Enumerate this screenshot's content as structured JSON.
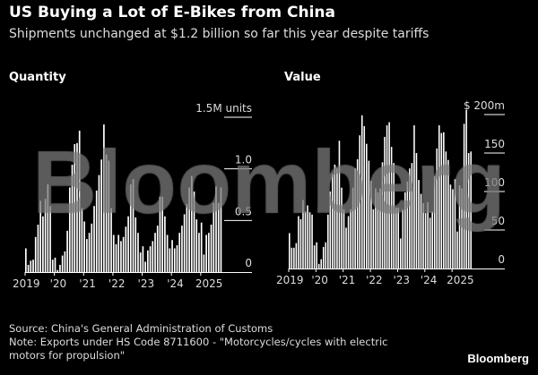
{
  "title": "US Buying a Lot of E-Bikes from China",
  "subtitle": "Shipments unchanged at $1.2 billion so far this year despite tariffs",
  "source": "Source: China's General Administration of Customs",
  "note_line1": "Note: Exports under HS Code 8711600 - \"Motorcycles/cycles with electric",
  "note_line2": "motors for propulsion\"",
  "logo": "Bloomberg",
  "watermark": "Bloomberg",
  "colors": {
    "background": "#000000",
    "bars": "#ffffff",
    "watermark": "#7a7a7a"
  },
  "chart_data": [
    {
      "type": "bar",
      "title": "Quantity",
      "ylabel": "units",
      "ylim": [
        0,
        1.5
      ],
      "yticks": [
        {
          "v": 0,
          "label": "0"
        },
        {
          "v": 0.5,
          "label": "0.5"
        },
        {
          "v": 1.0,
          "label": "1.0"
        },
        {
          "v": 1.5,
          "label": "1.5M units"
        }
      ],
      "xticks": [
        "2019",
        "'20",
        "'21",
        "'22",
        "'23",
        "'24",
        "2025"
      ],
      "period": "monthly, Jan 2019 - Sep 2025",
      "values": [
        0.23,
        0.07,
        0.11,
        0.12,
        0.34,
        0.46,
        0.69,
        0.54,
        0.71,
        0.85,
        0.64,
        0.12,
        0.14,
        0.02,
        0.07,
        0.16,
        0.2,
        0.4,
        0.82,
        1.04,
        1.24,
        1.25,
        1.37,
        0.62,
        0.49,
        0.32,
        0.38,
        0.47,
        0.64,
        0.79,
        0.94,
        1.09,
        1.43,
        1.14,
        1.08,
        0.62,
        0.36,
        0.27,
        0.36,
        0.3,
        0.34,
        0.44,
        0.54,
        0.85,
        0.9,
        0.53,
        0.38,
        0.19,
        0.25,
        0.1,
        0.21,
        0.25,
        0.3,
        0.38,
        0.45,
        0.73,
        0.73,
        0.54,
        0.36,
        0.23,
        0.31,
        0.23,
        0.26,
        0.38,
        0.45,
        0.56,
        0.66,
        0.82,
        0.93,
        0.78,
        0.51,
        0.38,
        0.48,
        0.17,
        0.36,
        0.38,
        0.46,
        0.67,
        0.83,
        0.67,
        0.82
      ]
    },
    {
      "type": "bar",
      "title": "Value",
      "ylabel": "$ m",
      "ylim": [
        0,
        200
      ],
      "yticks": [
        {
          "v": 0,
          "label": "0"
        },
        {
          "v": 50,
          "label": "50"
        },
        {
          "v": 100,
          "label": "100"
        },
        {
          "v": 150,
          "label": "150"
        },
        {
          "v": 200,
          "label": "$ 200m"
        }
      ],
      "xticks": [
        "2019",
        "'20",
        "'21",
        "'22",
        "'23",
        "'24",
        "2025"
      ],
      "period": "monthly, Jan 2019 - Sep 2025",
      "values": [
        46,
        27,
        27,
        33,
        68,
        64,
        89,
        74,
        82,
        73,
        70,
        30,
        34,
        6,
        12,
        28,
        34,
        70,
        100,
        123,
        135,
        130,
        166,
        105,
        77,
        53,
        68,
        77,
        105,
        130,
        142,
        173,
        199,
        185,
        162,
        140,
        114,
        77,
        104,
        99,
        104,
        138,
        171,
        186,
        190,
        158,
        137,
        79,
        79,
        39,
        77,
        99,
        113,
        130,
        137,
        186,
        150,
        115,
        97,
        85,
        72,
        86,
        66,
        74,
        120,
        156,
        186,
        176,
        177,
        152,
        141,
        109,
        103,
        116,
        48,
        108,
        104,
        188,
        206,
        150,
        152
      ]
    }
  ]
}
